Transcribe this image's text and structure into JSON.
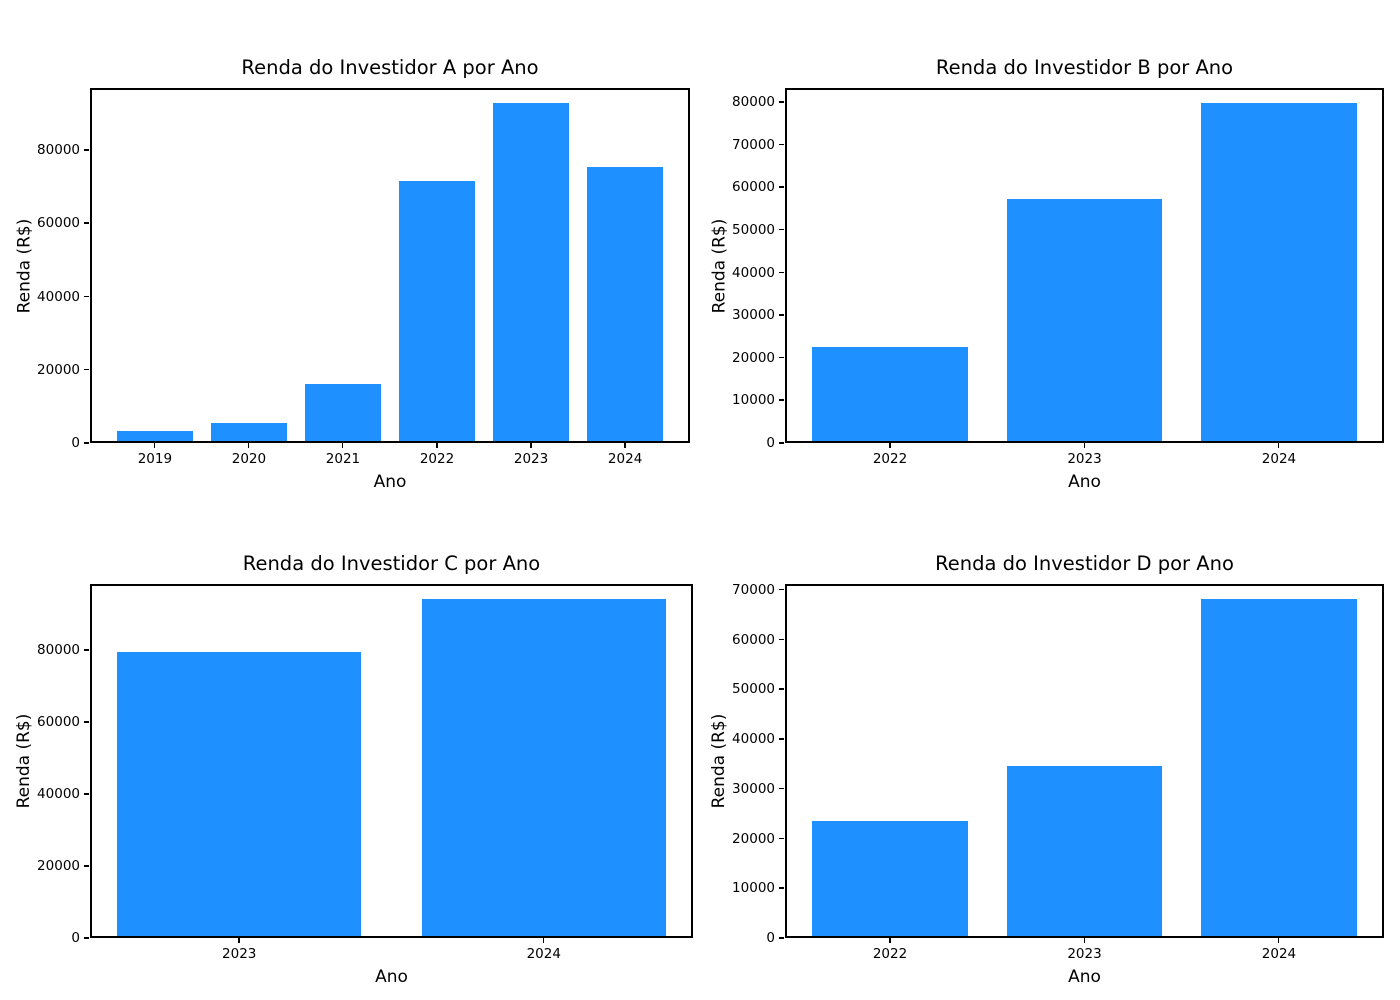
{
  "figure": {
    "background": "#ffffff",
    "bar_color": "#1e90ff",
    "axis_color": "#000000",
    "text_color": "#000000"
  },
  "chart_data": [
    {
      "id": "investor-a",
      "type": "bar",
      "title": "Renda do Investidor A por Ano",
      "xlabel": "Ano",
      "ylabel": "Renda (R$)",
      "categories": [
        "2019",
        "2020",
        "2021",
        "2022",
        "2023",
        "2024"
      ],
      "values": [
        2800,
        4900,
        15500,
        71100,
        92400,
        74900
      ],
      "yticks": [
        "0",
        "20000",
        "40000",
        "60000",
        "80000"
      ],
      "ytick_values": [
        0,
        20000,
        40000,
        60000,
        80000
      ],
      "ylim": [
        0,
        97000
      ],
      "bar_color": "#1e90ff",
      "grid": false
    },
    {
      "id": "investor-b",
      "type": "bar",
      "title": "Renda do Investidor B por Ano",
      "xlabel": "Ano",
      "ylabel": "Renda (R$)",
      "categories": [
        "2022",
        "2023",
        "2024"
      ],
      "values": [
        22000,
        56800,
        79300
      ],
      "yticks": [
        "0",
        "10000",
        "20000",
        "30000",
        "40000",
        "50000",
        "60000",
        "70000",
        "80000"
      ],
      "ytick_values": [
        0,
        10000,
        20000,
        30000,
        40000,
        50000,
        60000,
        70000,
        80000
      ],
      "ylim": [
        0,
        83300
      ],
      "bar_color": "#1e90ff",
      "grid": false
    },
    {
      "id": "investor-c",
      "type": "bar",
      "title": "Renda do Investidor C por Ano",
      "xlabel": "Ano",
      "ylabel": "Renda (R$)",
      "categories": [
        "2023",
        "2024"
      ],
      "values": [
        79000,
        93700
      ],
      "yticks": [
        "0",
        "20000",
        "40000",
        "60000",
        "80000"
      ],
      "ytick_values": [
        0,
        20000,
        40000,
        60000,
        80000
      ],
      "ylim": [
        0,
        98400
      ],
      "bar_color": "#1e90ff",
      "grid": false
    },
    {
      "id": "investor-d",
      "type": "bar",
      "title": "Renda do Investidor D por Ano",
      "xlabel": "Ano",
      "ylabel": "Renda (R$)",
      "categories": [
        "2022",
        "2023",
        "2024"
      ],
      "values": [
        23100,
        34200,
        67800
      ],
      "yticks": [
        "0",
        "10000",
        "20000",
        "30000",
        "40000",
        "50000",
        "60000",
        "70000"
      ],
      "ytick_values": [
        0,
        10000,
        20000,
        30000,
        40000,
        50000,
        60000,
        70000
      ],
      "ylim": [
        0,
        71200
      ],
      "bar_color": "#1e90ff",
      "grid": false
    }
  ]
}
